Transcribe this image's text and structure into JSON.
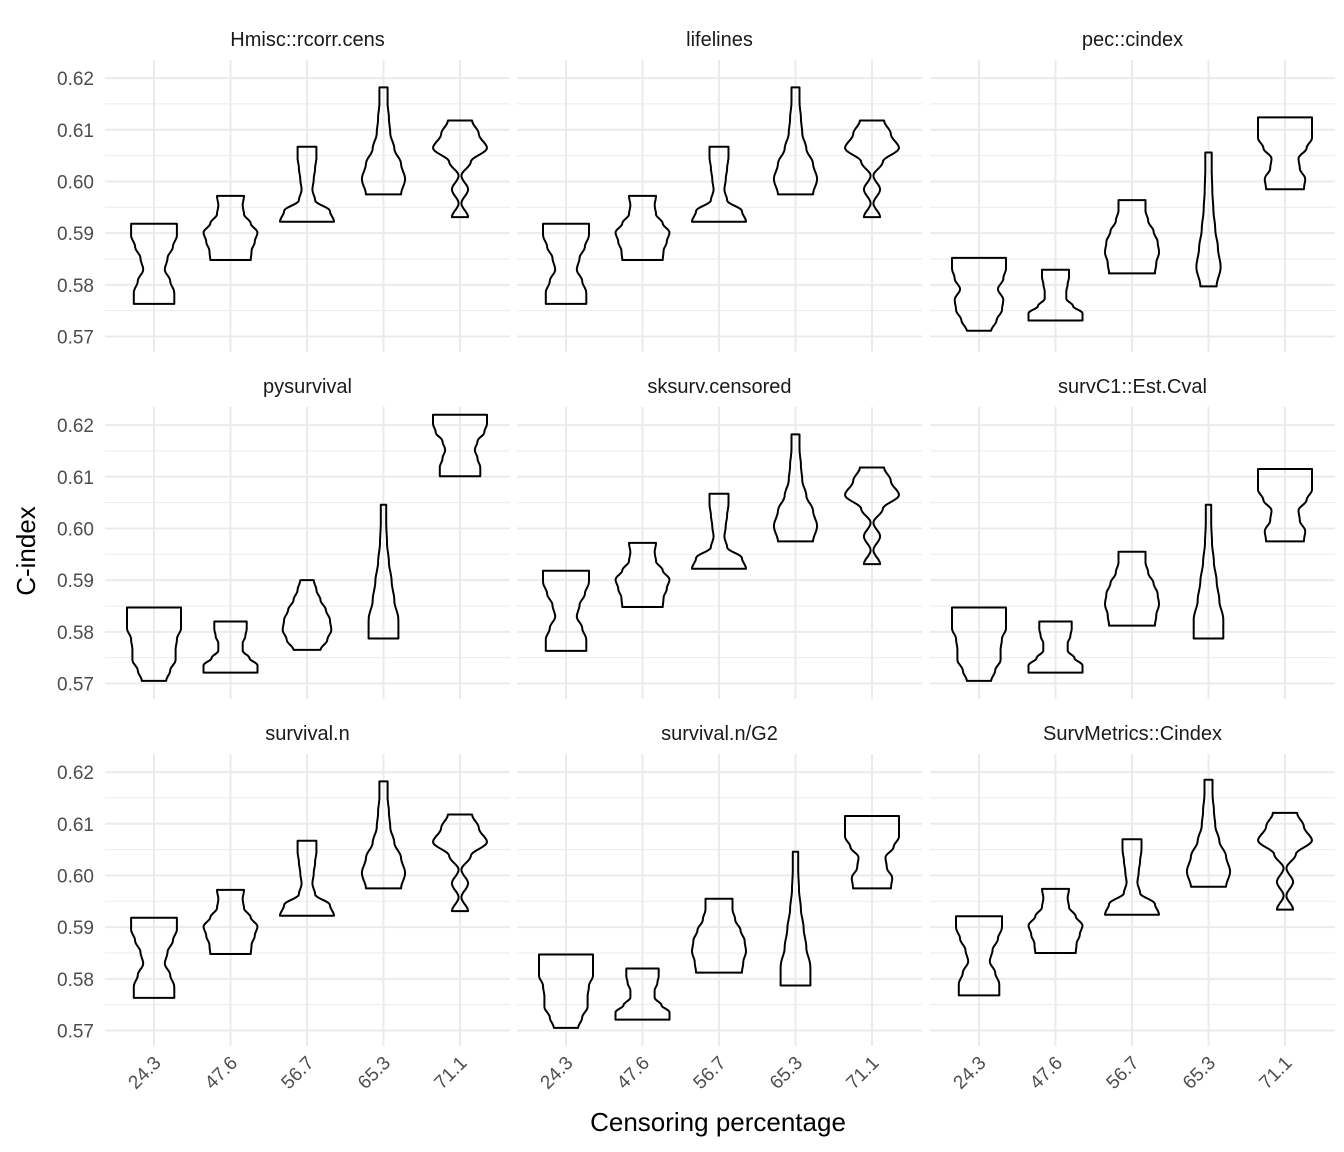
{
  "chart_data": {
    "type": "violin",
    "xlabel": "Censoring percentage",
    "ylabel": "C-index",
    "categories": [
      "24.3",
      "47.6",
      "56.7",
      "65.3",
      "71.1"
    ],
    "yticks": [
      "0.57",
      "0.58",
      "0.59",
      "0.60",
      "0.61",
      "0.62"
    ],
    "ylim": [
      0.567,
      0.6235
    ],
    "grid": true,
    "layout": "3x3 facets",
    "panels": [
      {
        "title": "Hmisc::rcorr.cens",
        "violins": [
          {
            "min": 0.5763,
            "max": 0.5918,
            "prof": [
              0.75,
              0.75,
              0.6,
              0.4,
              0.5,
              0.7,
              0.85,
              0.85
            ]
          },
          {
            "min": 0.5848,
            "max": 0.5972,
            "prof": [
              0.75,
              0.78,
              0.9,
              1.0,
              0.75,
              0.5,
              0.45,
              0.5
            ]
          },
          {
            "min": 0.5922,
            "max": 0.6067,
            "prof": [
              1.0,
              0.85,
              0.3,
              0.2,
              0.25,
              0.3,
              0.35,
              0.35
            ]
          },
          {
            "min": 0.5975,
            "max": 0.6182,
            "prof": [
              0.65,
              0.8,
              0.65,
              0.4,
              0.25,
              0.2,
              0.15,
              0.15
            ]
          },
          {
            "min": 0.5931,
            "max": 0.6118,
            "prof": [
              0.3,
              0.05,
              0.3,
              0.05,
              0.4,
              1.0,
              0.7,
              0.45
            ]
          }
        ]
      },
      {
        "title": "lifelines",
        "violins": [
          {
            "min": 0.5763,
            "max": 0.5918,
            "prof": [
              0.75,
              0.75,
              0.6,
              0.4,
              0.5,
              0.7,
              0.85,
              0.85
            ]
          },
          {
            "min": 0.5848,
            "max": 0.5972,
            "prof": [
              0.75,
              0.78,
              0.9,
              1.0,
              0.75,
              0.5,
              0.45,
              0.5
            ]
          },
          {
            "min": 0.5922,
            "max": 0.6067,
            "prof": [
              1.0,
              0.85,
              0.3,
              0.2,
              0.25,
              0.3,
              0.35,
              0.35
            ]
          },
          {
            "min": 0.5975,
            "max": 0.6182,
            "prof": [
              0.65,
              0.8,
              0.65,
              0.4,
              0.25,
              0.2,
              0.15,
              0.15
            ]
          },
          {
            "min": 0.5931,
            "max": 0.6118,
            "prof": [
              0.3,
              0.05,
              0.3,
              0.05,
              0.4,
              1.0,
              0.7,
              0.45
            ]
          }
        ]
      },
      {
        "title": "pec::cindex",
        "violins": [
          {
            "min": 0.5711,
            "max": 0.5852,
            "prof": [
              0.45,
              0.65,
              0.85,
              0.9,
              0.7,
              0.9,
              1.0,
              1.0
            ]
          },
          {
            "min": 0.5731,
            "max": 0.5829,
            "prof": [
              1.0,
              1.0,
              0.65,
              0.4,
              0.4,
              0.45,
              0.5,
              0.5
            ]
          },
          {
            "min": 0.5822,
            "max": 0.5964,
            "prof": [
              0.85,
              0.9,
              1.0,
              0.95,
              0.8,
              0.6,
              0.5,
              0.5
            ]
          },
          {
            "min": 0.5797,
            "max": 0.6056,
            "prof": [
              0.3,
              0.45,
              0.35,
              0.25,
              0.18,
              0.14,
              0.12,
              0.12
            ]
          },
          {
            "min": 0.5985,
            "max": 0.6124,
            "prof": [
              0.7,
              0.75,
              0.55,
              0.5,
              0.8,
              1.0,
              1.0,
              1.0
            ]
          }
        ]
      },
      {
        "title": "pysurvival",
        "violins": [
          {
            "min": 0.5705,
            "max": 0.5847,
            "prof": [
              0.45,
              0.6,
              0.8,
              0.8,
              0.85,
              1.0,
              1.0,
              1.0
            ]
          },
          {
            "min": 0.5721,
            "max": 0.582,
            "prof": [
              1.0,
              1.0,
              0.7,
              0.45,
              0.45,
              0.55,
              0.6,
              0.6
            ]
          },
          {
            "min": 0.5765,
            "max": 0.59,
            "prof": [
              0.5,
              0.75,
              0.9,
              0.85,
              0.7,
              0.5,
              0.35,
              0.25
            ]
          },
          {
            "min": 0.5787,
            "max": 0.6046,
            "prof": [
              0.55,
              0.55,
              0.4,
              0.3,
              0.2,
              0.13,
              0.1,
              0.1
            ]
          },
          {
            "min": 0.6101,
            "max": 0.622,
            "prof": [
              0.75,
              0.75,
              0.65,
              0.55,
              0.65,
              0.9,
              1.0,
              1.0
            ]
          }
        ]
      },
      {
        "title": "sksurv.censored",
        "violins": [
          {
            "min": 0.5763,
            "max": 0.5918,
            "prof": [
              0.75,
              0.75,
              0.6,
              0.4,
              0.5,
              0.7,
              0.85,
              0.85
            ]
          },
          {
            "min": 0.5848,
            "max": 0.5972,
            "prof": [
              0.75,
              0.78,
              0.9,
              1.0,
              0.75,
              0.5,
              0.45,
              0.5
            ]
          },
          {
            "min": 0.5922,
            "max": 0.6067,
            "prof": [
              1.0,
              0.85,
              0.3,
              0.2,
              0.25,
              0.3,
              0.35,
              0.35
            ]
          },
          {
            "min": 0.5975,
            "max": 0.6182,
            "prof": [
              0.65,
              0.8,
              0.65,
              0.4,
              0.25,
              0.2,
              0.15,
              0.15
            ]
          },
          {
            "min": 0.5931,
            "max": 0.6118,
            "prof": [
              0.3,
              0.05,
              0.3,
              0.05,
              0.4,
              1.0,
              0.7,
              0.45
            ]
          }
        ]
      },
      {
        "title": "survC1::Est.Cval",
        "violins": [
          {
            "min": 0.5705,
            "max": 0.5847,
            "prof": [
              0.45,
              0.6,
              0.8,
              0.8,
              0.85,
              1.0,
              1.0,
              1.0
            ]
          },
          {
            "min": 0.5721,
            "max": 0.582,
            "prof": [
              1.0,
              1.0,
              0.7,
              0.45,
              0.45,
              0.55,
              0.6,
              0.6
            ]
          },
          {
            "min": 0.5812,
            "max": 0.5955,
            "prof": [
              0.85,
              0.9,
              1.0,
              0.95,
              0.8,
              0.6,
              0.5,
              0.5
            ]
          },
          {
            "min": 0.5787,
            "max": 0.6046,
            "prof": [
              0.55,
              0.55,
              0.4,
              0.3,
              0.2,
              0.13,
              0.1,
              0.1
            ]
          },
          {
            "min": 0.5975,
            "max": 0.6115,
            "prof": [
              0.7,
              0.75,
              0.55,
              0.5,
              0.8,
              1.0,
              1.0,
              1.0
            ]
          }
        ]
      },
      {
        "title": "survival.n",
        "violins": [
          {
            "min": 0.5763,
            "max": 0.5918,
            "prof": [
              0.75,
              0.75,
              0.6,
              0.4,
              0.5,
              0.7,
              0.85,
              0.85
            ]
          },
          {
            "min": 0.5848,
            "max": 0.5972,
            "prof": [
              0.75,
              0.78,
              0.9,
              1.0,
              0.75,
              0.5,
              0.45,
              0.5
            ]
          },
          {
            "min": 0.5922,
            "max": 0.6067,
            "prof": [
              1.0,
              0.85,
              0.3,
              0.2,
              0.25,
              0.3,
              0.35,
              0.35
            ]
          },
          {
            "min": 0.5975,
            "max": 0.6182,
            "prof": [
              0.65,
              0.8,
              0.65,
              0.4,
              0.25,
              0.2,
              0.15,
              0.15
            ]
          },
          {
            "min": 0.5931,
            "max": 0.6118,
            "prof": [
              0.3,
              0.05,
              0.3,
              0.05,
              0.4,
              1.0,
              0.7,
              0.45
            ]
          }
        ]
      },
      {
        "title": "survival.n/G2",
        "violins": [
          {
            "min": 0.5705,
            "max": 0.5847,
            "prof": [
              0.45,
              0.6,
              0.8,
              0.8,
              0.85,
              1.0,
              1.0,
              1.0
            ]
          },
          {
            "min": 0.5721,
            "max": 0.582,
            "prof": [
              1.0,
              1.0,
              0.7,
              0.45,
              0.45,
              0.55,
              0.6,
              0.6
            ]
          },
          {
            "min": 0.5812,
            "max": 0.5955,
            "prof": [
              0.85,
              0.9,
              1.0,
              0.95,
              0.8,
              0.6,
              0.5,
              0.5
            ]
          },
          {
            "min": 0.5787,
            "max": 0.6046,
            "prof": [
              0.55,
              0.55,
              0.4,
              0.3,
              0.2,
              0.13,
              0.1,
              0.1
            ]
          },
          {
            "min": 0.5975,
            "max": 0.6115,
            "prof": [
              0.7,
              0.75,
              0.55,
              0.5,
              0.8,
              1.0,
              1.0,
              1.0
            ]
          }
        ]
      },
      {
        "title": "SurvMetrics::Cindex",
        "violins": [
          {
            "min": 0.5768,
            "max": 0.5921,
            "prof": [
              0.75,
              0.75,
              0.6,
              0.4,
              0.5,
              0.7,
              0.85,
              0.85
            ]
          },
          {
            "min": 0.585,
            "max": 0.5974,
            "prof": [
              0.75,
              0.78,
              0.9,
              1.0,
              0.75,
              0.5,
              0.45,
              0.5
            ]
          },
          {
            "min": 0.5924,
            "max": 0.607,
            "prof": [
              1.0,
              0.85,
              0.3,
              0.2,
              0.25,
              0.3,
              0.35,
              0.35
            ]
          },
          {
            "min": 0.5978,
            "max": 0.6185,
            "prof": [
              0.65,
              0.8,
              0.65,
              0.4,
              0.25,
              0.2,
              0.15,
              0.15
            ]
          },
          {
            "min": 0.5934,
            "max": 0.6121,
            "prof": [
              0.3,
              0.05,
              0.3,
              0.05,
              0.4,
              1.0,
              0.7,
              0.45
            ]
          }
        ]
      }
    ]
  }
}
